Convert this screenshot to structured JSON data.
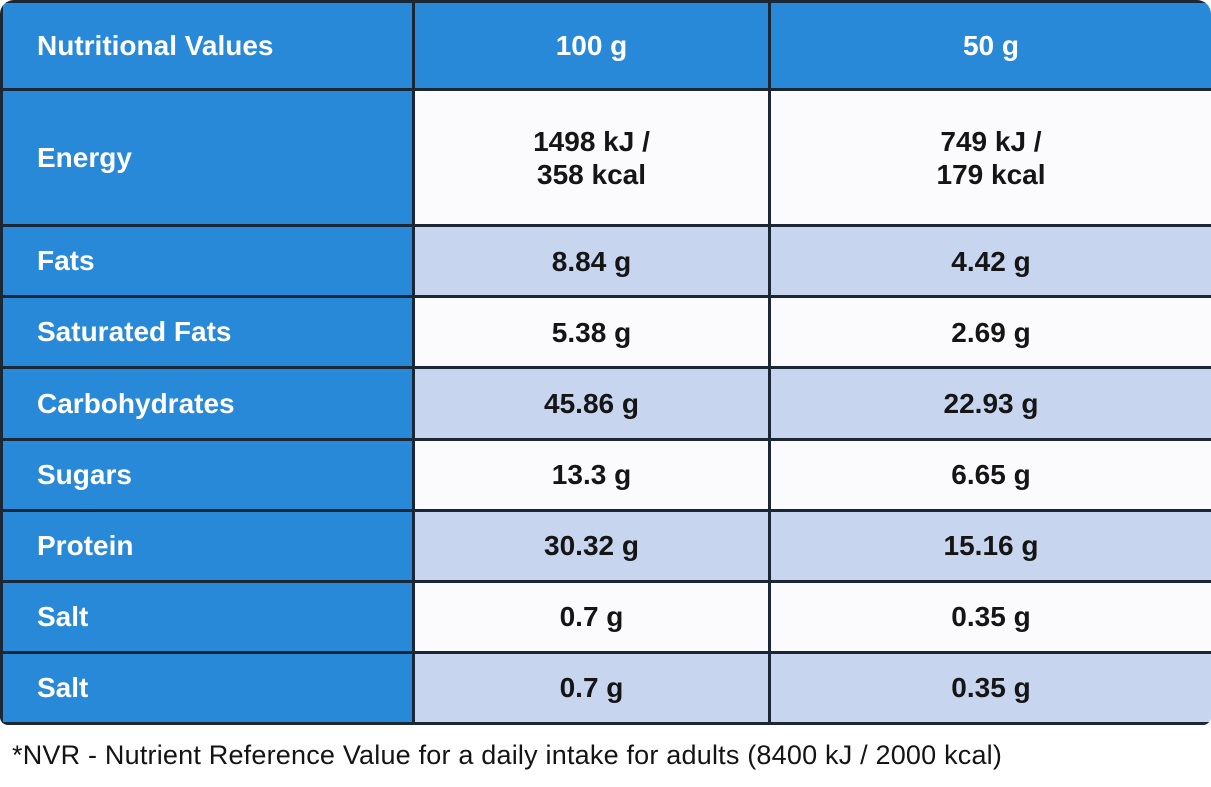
{
  "table": {
    "header": [
      "Nutritional Values",
      "100 g",
      "50 g"
    ],
    "rows": [
      {
        "label": "Energy",
        "per100": "1498 kJ /\n358 kcal",
        "per50": "749 kJ /\n179 kcal"
      },
      {
        "label": "Fats",
        "per100": "8.84 g",
        "per50": "4.42 g"
      },
      {
        "label": "Saturated Fats",
        "per100": "5.38 g",
        "per50": "2.69 g"
      },
      {
        "label": "Carbohydrates",
        "per100": "45.86 g",
        "per50": "22.93 g"
      },
      {
        "label": "Sugars",
        "per100": "13.3 g",
        "per50": "6.65 g"
      },
      {
        "label": "Protein",
        "per100": "30.32 g",
        "per50": "15.16 g"
      },
      {
        "label": "Salt",
        "per100": "0.7 g",
        "per50": "0.35 g"
      },
      {
        "label": "Salt",
        "per100": "0.7 g",
        "per50": "0.35 g"
      }
    ]
  },
  "footnote": "*NVR - Nutrient Reference Value for a daily intake for adults (8400 kJ / 2000 kcal)",
  "colors": {
    "blue": "#2789d7",
    "lightblue": "#c7d5ef",
    "white-cell": "#fbfbfd",
    "border": "#1c2735",
    "text-dark": "#151515",
    "text-light": "#ffffff"
  }
}
